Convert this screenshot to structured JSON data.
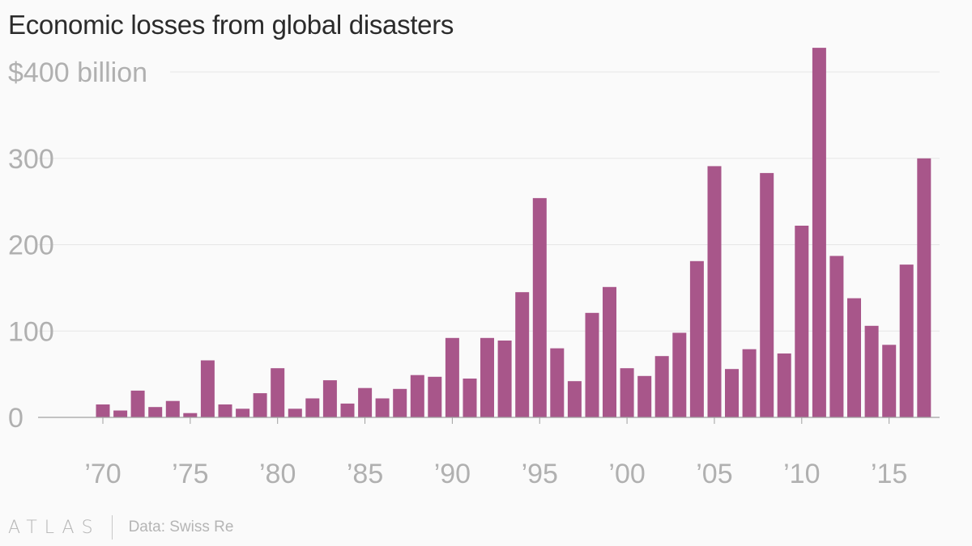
{
  "title": "Economic losses from global disasters",
  "footer": {
    "logo": "ATLAS",
    "source": "Data: Swiss Re"
  },
  "colors": {
    "bar": "#a8568a",
    "grid": "#e6e6e6",
    "axis": "#a0a0a0",
    "text": "#b0b0b0"
  },
  "chart_data": {
    "type": "bar",
    "title": "Economic losses from global disasters",
    "xlabel": "",
    "ylabel": "",
    "ylim": [
      0,
      400
    ],
    "yticks": [
      0,
      100,
      200,
      300,
      400
    ],
    "ytick_labels": [
      "0",
      "100",
      "200",
      "300",
      "$400 billion"
    ],
    "xtick_labels": [
      {
        "year": 1970,
        "label": "’70"
      },
      {
        "year": 1975,
        "label": "’75"
      },
      {
        "year": 1980,
        "label": "’80"
      },
      {
        "year": 1985,
        "label": "’85"
      },
      {
        "year": 1990,
        "label": "’90"
      },
      {
        "year": 1995,
        "label": "’95"
      },
      {
        "year": 2000,
        "label": "’00"
      },
      {
        "year": 2005,
        "label": "’05"
      },
      {
        "year": 2010,
        "label": "’10"
      },
      {
        "year": 2015,
        "label": "’15"
      }
    ],
    "grid": true,
    "categories": [
      1970,
      1971,
      1972,
      1973,
      1974,
      1975,
      1976,
      1977,
      1978,
      1979,
      1980,
      1981,
      1982,
      1983,
      1984,
      1985,
      1986,
      1987,
      1988,
      1989,
      1990,
      1991,
      1992,
      1993,
      1994,
      1995,
      1996,
      1997,
      1998,
      1999,
      2000,
      2001,
      2002,
      2003,
      2004,
      2005,
      2006,
      2007,
      2008,
      2009,
      2010,
      2011,
      2012,
      2013,
      2014,
      2015,
      2016,
      2017
    ],
    "values": [
      15,
      8,
      31,
      12,
      19,
      5,
      66,
      15,
      10,
      28,
      57,
      10,
      22,
      43,
      16,
      34,
      22,
      33,
      49,
      47,
      92,
      45,
      92,
      89,
      145,
      254,
      80,
      42,
      121,
      151,
      57,
      48,
      71,
      98,
      181,
      291,
      56,
      79,
      283,
      74,
      222,
      428,
      187,
      138,
      106,
      84,
      177,
      300
    ]
  }
}
